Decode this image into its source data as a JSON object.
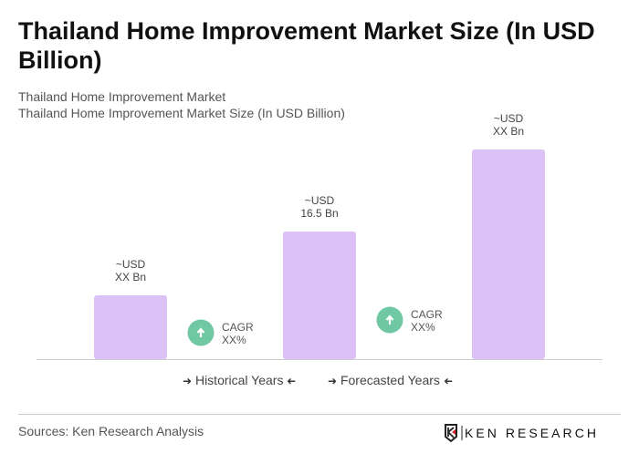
{
  "title": "Thailand Home Improvement Market Size (In USD Billion)",
  "subtitle1": "Thailand Home Improvement Market",
  "subtitle2": "Thailand Home Improvement Market Size (In USD Billion)",
  "chart_data": {
    "type": "bar",
    "categories": [
      "",
      "",
      ""
    ],
    "values": [
      8.25,
      16.5,
      27.1
    ],
    "data_labels": [
      [
        "~USD",
        "XX Bn"
      ],
      [
        "~USD",
        "16.5 Bn"
      ],
      [
        "~USD",
        "XX Bn"
      ]
    ],
    "cagr": [
      [
        "CAGR",
        "XX%"
      ],
      [
        "CAGR",
        "XX%"
      ]
    ],
    "bar_color": "#dcc1f6",
    "cagr_icon_color": "#6fc7a3",
    "grid": false
  },
  "legend": {
    "historical": "Historical Years",
    "forecasted": "Forecasted Years",
    "arrow_right": "➜",
    "arrow_left": "➜"
  },
  "source": "Sources: Ken Research Analysis",
  "logo_text": "KEN RESEARCH"
}
